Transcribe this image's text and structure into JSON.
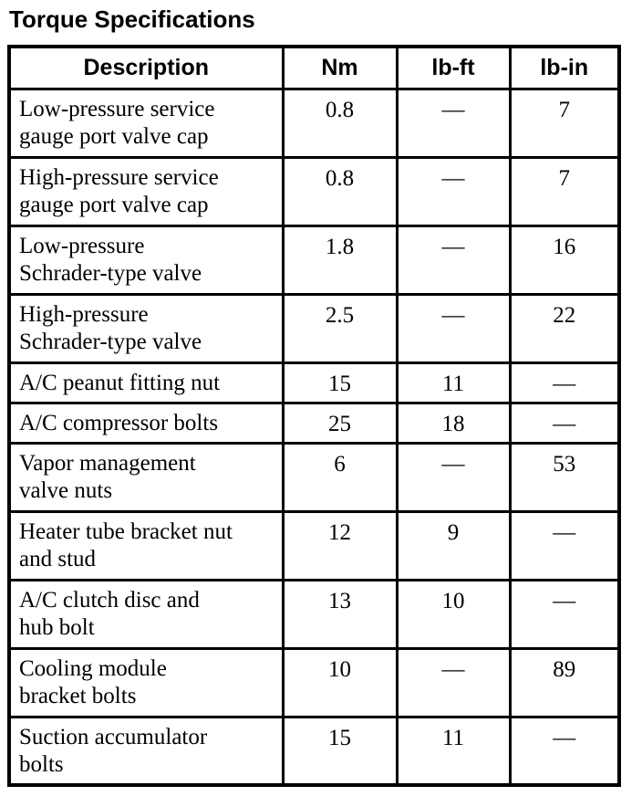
{
  "page": {
    "title": "Torque Specifications"
  },
  "table": {
    "columns": [
      "Description",
      "Nm",
      "lb-ft",
      "lb-in"
    ],
    "rows": [
      {
        "description": "Low-pressure service\ngauge port valve cap",
        "nm": "0.8",
        "lbft": "—",
        "lbin": "7"
      },
      {
        "description": "High-pressure service\ngauge port valve cap",
        "nm": "0.8",
        "lbft": "—",
        "lbin": "7"
      },
      {
        "description": "Low-pressure\nSchrader-type valve",
        "nm": "1.8",
        "lbft": "—",
        "lbin": "16"
      },
      {
        "description": "High-pressure\nSchrader-type valve",
        "nm": "2.5",
        "lbft": "—",
        "lbin": "22"
      },
      {
        "description": "A/C peanut fitting nut",
        "nm": "15",
        "lbft": "11",
        "lbin": "—"
      },
      {
        "description": "A/C compressor bolts",
        "nm": "25",
        "lbft": "18",
        "lbin": "—"
      },
      {
        "description": "Vapor management\nvalve nuts",
        "nm": "6",
        "lbft": "—",
        "lbin": "53"
      },
      {
        "description": "Heater tube bracket nut\nand stud",
        "nm": "12",
        "lbft": "9",
        "lbin": "—"
      },
      {
        "description": "A/C clutch disc and\nhub bolt",
        "nm": "13",
        "lbft": "10",
        "lbin": "—"
      },
      {
        "description": "Cooling module\nbracket bolts",
        "nm": "10",
        "lbft": "—",
        "lbin": "89"
      },
      {
        "description": "Suction accumulator\nbolts",
        "nm": "15",
        "lbft": "11",
        "lbin": "—"
      }
    ]
  }
}
